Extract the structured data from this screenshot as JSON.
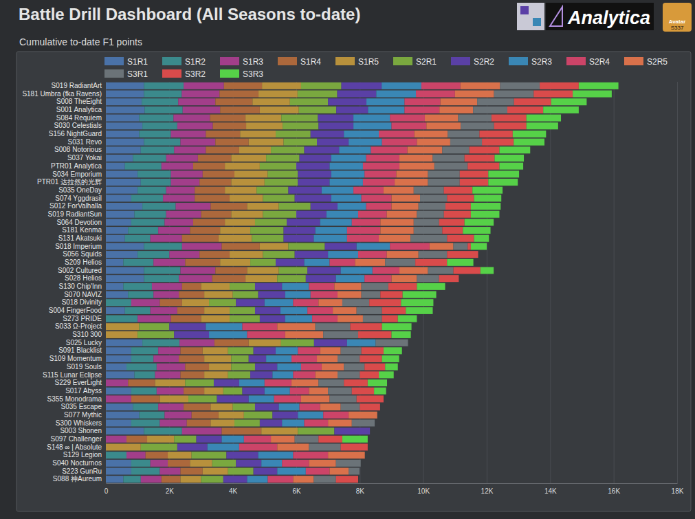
{
  "chart_data": {
    "type": "bar",
    "orientation": "horizontal",
    "stacked": true,
    "title": "Battle Drill Dashboard (All Seasons to-date)",
    "subtitle": "Cumulative to-date F1 points",
    "annotations": [
      "Analytica",
      "Avatar",
      "S337"
    ],
    "legend": "top",
    "grid": true,
    "xlim": [
      0,
      18000
    ],
    "xticks": [
      0,
      {
        "value": 2000,
        "label": "2K"
      },
      {
        "value": 4000,
        "label": "4K"
      },
      {
        "value": 6000,
        "label": "6K"
      },
      {
        "value": 8000,
        "label": "8K"
      },
      {
        "value": 10000,
        "label": "10K"
      },
      {
        "value": 12000,
        "label": "12K"
      },
      {
        "value": 14000,
        "label": "14K"
      },
      {
        "value": 16000,
        "label": "16K"
      },
      {
        "value": 18000,
        "label": "18K"
      }
    ],
    "categories": [
      "S019 RadiantArt",
      "S181 Umbra (fka Ravens)",
      "S008 TheEight",
      "S001 Analytica",
      "S084 Requiem",
      "S030 Celestials",
      "S156 NightGuard",
      "S031 Revo",
      "S008 Notorious",
      "S037 Yokai",
      "PTR01 Analytica",
      "S034 Emporium",
      "PTR01 达拉然的光辉",
      "S035 OneDay",
      "S074 Yggdrasil",
      "S012 ForValhalla",
      "S019 RadiantSun",
      "S064 Devotion",
      "S181 Kenma",
      "S131 Akatsuki",
      "S018 Imperium",
      "S056 Squids",
      "S209 Helios",
      "S002 Cultured",
      "S028 Helios",
      "S130 Chip'Inn",
      "S070 NAVIZ",
      "S018 Divinity",
      "S004 FingerFood",
      "S273 PRIDE",
      "S033 Ω-Project",
      "S310 300",
      "S025 Lucky",
      "S091 Blacklist",
      "S109 Momentum",
      "S019 Souls",
      "S115 Lunar Eclipse",
      "S229 EverLight",
      "S017 Abyss",
      "S355 Monodrama",
      "S035 Escape",
      "S077 Mythic",
      "S300 Whiskers",
      "S003 Shonen",
      "S097 Challenger",
      "S148 ∞ | Absolute",
      "S129 Legion",
      "S040 Nocturnos",
      "S223 GunRu",
      "S088 神Aureum"
    ],
    "series": [
      {
        "name": "S1R1",
        "color": "#4a72a8",
        "values": [
          1200,
          1200,
          1130,
          1220,
          1050,
          1150,
          1050,
          1200,
          1100,
          850,
          600,
          1000,
          1100,
          1000,
          800,
          1150,
          900,
          800,
          700,
          600,
          1200,
          1000,
          550,
          1200,
          1200,
          550,
          700,
          0,
          600,
          0,
          0,
          0,
          1150,
          800,
          800,
          650,
          900,
          0,
          800,
          0,
          850,
          1050,
          800,
          1200,
          0,
          0,
          0,
          800,
          800,
          550
        ]
      },
      {
        "name": "S1R2",
        "color": "#3b8a8c",
        "values": [
          1250,
          1190,
          1150,
          1200,
          1080,
          1100,
          1000,
          1150,
          1050,
          1050,
          1150,
          1050,
          950,
          900,
          1000,
          1050,
          1000,
          1050,
          950,
          800,
          1200,
          1000,
          950,
          1150,
          1100,
          900,
          800,
          800,
          800,
          1000,
          0,
          0,
          1170,
          850,
          700,
          950,
          650,
          0,
          800,
          0,
          800,
          800,
          900,
          1200,
          0,
          0,
          650,
          600,
          900,
          550
        ]
      },
      {
        "name": "S1R3",
        "color": "#a23e8a",
        "values": [
          1270,
          1190,
          1170,
          1180,
          1150,
          1120,
          1100,
          1100,
          1000,
          1000,
          1000,
          1000,
          900,
          900,
          1000,
          1100,
          1100,
          900,
          1000,
          1000,
          1250,
          950,
          1000,
          1100,
          1050,
          950,
          800,
          900,
          850,
          1050,
          0,
          0,
          1100,
          700,
          800,
          900,
          800,
          700,
          850,
          800,
          800,
          850,
          850,
          1250,
          650,
          0,
          600,
          550,
          650,
          650
        ]
      },
      {
        "name": "S1R4",
        "color": "#ac683c",
        "values": [
          1200,
          1230,
          1170,
          1250,
          1120,
          1050,
          1080,
          1050,
          1050,
          1050,
          1000,
          1000,
          1000,
          950,
          1100,
          1150,
          950,
          1000,
          950,
          1150,
          1200,
          950,
          1100,
          1000,
          1050,
          600,
          800,
          700,
          850,
          950,
          0,
          0,
          1080,
          700,
          800,
          750,
          750,
          850,
          650,
          900,
          850,
          850,
          750,
          1250,
          650,
          0,
          700,
          700,
          700,
          600
        ]
      },
      {
        "name": "S1R5",
        "color": "#b8913c",
        "values": [
          1230,
          1230,
          1180,
          1230,
          1130,
          1150,
          1120,
          1100,
          1000,
          1100,
          1100,
          1050,
          1050,
          1000,
          1050,
          1000,
          1000,
          950,
          950,
          1050,
          900,
          1050,
          950,
          1000,
          1000,
          900,
          900,
          850,
          800,
          900,
          1050,
          1000,
          1020,
          800,
          850,
          700,
          750,
          950,
          600,
          900,
          700,
          800,
          750,
          1150,
          850,
          1100,
          750,
          700,
          800,
          650
        ]
      },
      {
        "name": "S2R1",
        "color": "#7aa83f",
        "values": [
          1270,
          1250,
          1200,
          1180,
          1150,
          1130,
          1100,
          1050,
          1050,
          1050,
          1150,
          950,
          1050,
          1000,
          1000,
          1000,
          1050,
          1000,
          1050,
          1000,
          1150,
          1000,
          800,
          900,
          900,
          800,
          800,
          850,
          800,
          950,
          950,
          1150,
          1040,
          800,
          550,
          750,
          700,
          900,
          600,
          900,
          700,
          900,
          800,
          1150,
          700,
          1150,
          1100,
          750,
          800,
          700
        ]
      },
      {
        "name": "S2R2",
        "color": "#5a40a5",
        "values": [
          1270,
          1230,
          1210,
          1000,
          1120,
          1100,
          1050,
          1000,
          1100,
          1000,
          1050,
          1050,
          1000,
          1050,
          1150,
          850,
          950,
          1050,
          1000,
          950,
          1000,
          1050,
          900,
          1050,
          950,
          850,
          850,
          900,
          800,
          800,
          1150,
          1100,
          1040,
          700,
          550,
          700,
          700,
          800,
          700,
          1000,
          750,
          800,
          700,
          1120,
          800,
          950,
          1000,
          800,
          750,
          750
        ]
      },
      {
        "name": "S2R3",
        "color": "#3a87b5",
        "values": [
          1250,
          1250,
          1200,
          1150,
          1150,
          1200,
          1100,
          1050,
          1000,
          1100,
          1050,
          1050,
          1050,
          1000,
          950,
          900,
          1000,
          1000,
          1000,
          1050,
          1050,
          950,
          800,
          1000,
          900,
          850,
          800,
          900,
          850,
          850,
          1150,
          1200,
          900,
          700,
          800,
          750,
          650,
          800,
          800,
          800,
          650,
          800,
          700,
          0,
          700,
          1000,
          1100,
          650,
          900,
          650
        ]
      },
      {
        "name": "S2R4",
        "color": "#cc4468",
        "values": [
          1230,
          1230,
          1130,
          1100,
          1100,
          1100,
          1120,
          1100,
          1150,
          1050,
          1150,
          1000,
          1000,
          950,
          950,
          800,
          900,
          900,
          1050,
          1000,
          1250,
          900,
          800,
          850,
          850,
          800,
          850,
          800,
          800,
          800,
          1100,
          1200,
          0,
          700,
          800,
          650,
          700,
          850,
          600,
          850,
          650,
          800,
          750,
          0,
          850,
          1200,
          1100,
          850,
          750,
          800
        ]
      },
      {
        "name": "S2R5",
        "color": "#d9714b",
        "values": [
          1250,
          1230,
          1160,
          1060,
          1050,
          1080,
          1050,
          1050,
          1100,
          1050,
          1100,
          1000,
          1050,
          950,
          900,
          850,
          950,
          1050,
          1050,
          1000,
          750,
          1000,
          950,
          900,
          800,
          850,
          750,
          750,
          750,
          800,
          1200,
          1200,
          0,
          650,
          650,
          700,
          700,
          850,
          600,
          900,
          650,
          900,
          750,
          0,
          750,
          1000,
          1160,
          850,
          600,
          650
        ]
      },
      {
        "name": "S3R1",
        "color": "#6b7378",
        "values": [
          1250,
          1250,
          1160,
          1080,
          1050,
          1050,
          1000,
          1000,
          850,
          1000,
          1050,
          1000,
          1000,
          950,
          850,
          850,
          850,
          800,
          900,
          1150,
          450,
          900,
          950,
          800,
          700,
          850,
          600,
          850,
          800,
          600,
          1100,
          1100,
          1020,
          650,
          700,
          650,
          700,
          800,
          750,
          850,
          600,
          0,
          720,
          0,
          750,
          1000,
          0,
          780,
          340,
          700
        ]
      },
      {
        "name": "S3R2",
        "color": "#d94b4b",
        "values": [
          1230,
          1230,
          1170,
          1130,
          1100,
          1020,
          1050,
          1000,
          950,
          950,
          1000,
          900,
          900,
          900,
          850,
          800,
          850,
          800,
          650,
          850,
          100,
          980,
          1000,
          850,
          620,
          900,
          700,
          1000,
          750,
          500,
          1000,
          1050,
          0,
          700,
          700,
          650,
          600,
          750,
          700,
          850,
          640,
          0,
          0,
          0,
          750,
          850,
          0,
          0,
          0,
          700
        ]
      },
      {
        "name": "S3R3",
        "color": "#56d148",
        "values": [
          1250,
          1230,
          1120,
          1120,
          1090,
          1000,
          1050,
          970,
          970,
          920,
          750,
          970,
          930,
          950,
          860,
          940,
          900,
          920,
          870,
          470,
          500,
          0,
          830,
          420,
          0,
          890,
          1060,
          1020,
          850,
          600,
          930,
          610,
          0,
          580,
          540,
          400,
          470,
          610,
          380,
          0,
          0,
          0,
          0,
          0,
          800,
          0,
          0,
          0,
          0,
          0
        ]
      }
    ]
  }
}
